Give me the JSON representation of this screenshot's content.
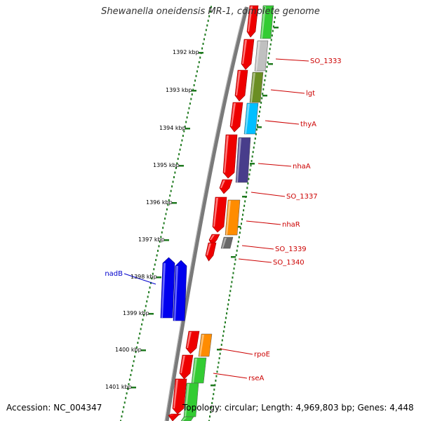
{
  "title": "Shewanella oneidensis MR-1, complete genome",
  "footer": {
    "accession": "Accession: NC_004347",
    "topology": "Topology: circular; Length: 4,969,803 bp; Genes: 4,448"
  },
  "colors": {
    "backbone": "#7a7a7a",
    "tick": "#1f7a1f",
    "label_red": "#cc0000",
    "label_blue": "#0000cc",
    "cds_red": "#ee0000",
    "cds_blue": "#0000ee"
  },
  "kbp_labels": [
    "1392 kbp",
    "1393 kbp",
    "1394 kbp",
    "1395 kbp",
    "1396 kbp",
    "1397 kbp",
    "1398 kbp",
    "1399 kbp",
    "1400 kbp",
    "1401 kbp"
  ],
  "gene_labels": [
    {
      "text": "SO_1333",
      "color": "#cc0000"
    },
    {
      "text": "lgt",
      "color": "#cc0000"
    },
    {
      "text": "thyA",
      "color": "#cc0000"
    },
    {
      "text": "nhaA",
      "color": "#cc0000"
    },
    {
      "text": "SO_1337",
      "color": "#cc0000"
    },
    {
      "text": "nhaR",
      "color": "#cc0000"
    },
    {
      "text": "SO_1339",
      "color": "#cc0000"
    },
    {
      "text": "SO_1340",
      "color": "#cc0000"
    },
    {
      "text": "rpoE",
      "color": "#cc0000"
    },
    {
      "text": "rseA",
      "color": "#cc0000"
    },
    {
      "text": "nadB",
      "color": "#0000cc"
    }
  ],
  "cog_colors": [
    "#33cc33",
    "#c0c0c0",
    "#6b8e23",
    "#00bfff",
    "#483d8b",
    "#ff8c00",
    "#696969",
    "#ff8c00",
    "#33cc33",
    "#33cc33",
    "#33cc33"
  ]
}
